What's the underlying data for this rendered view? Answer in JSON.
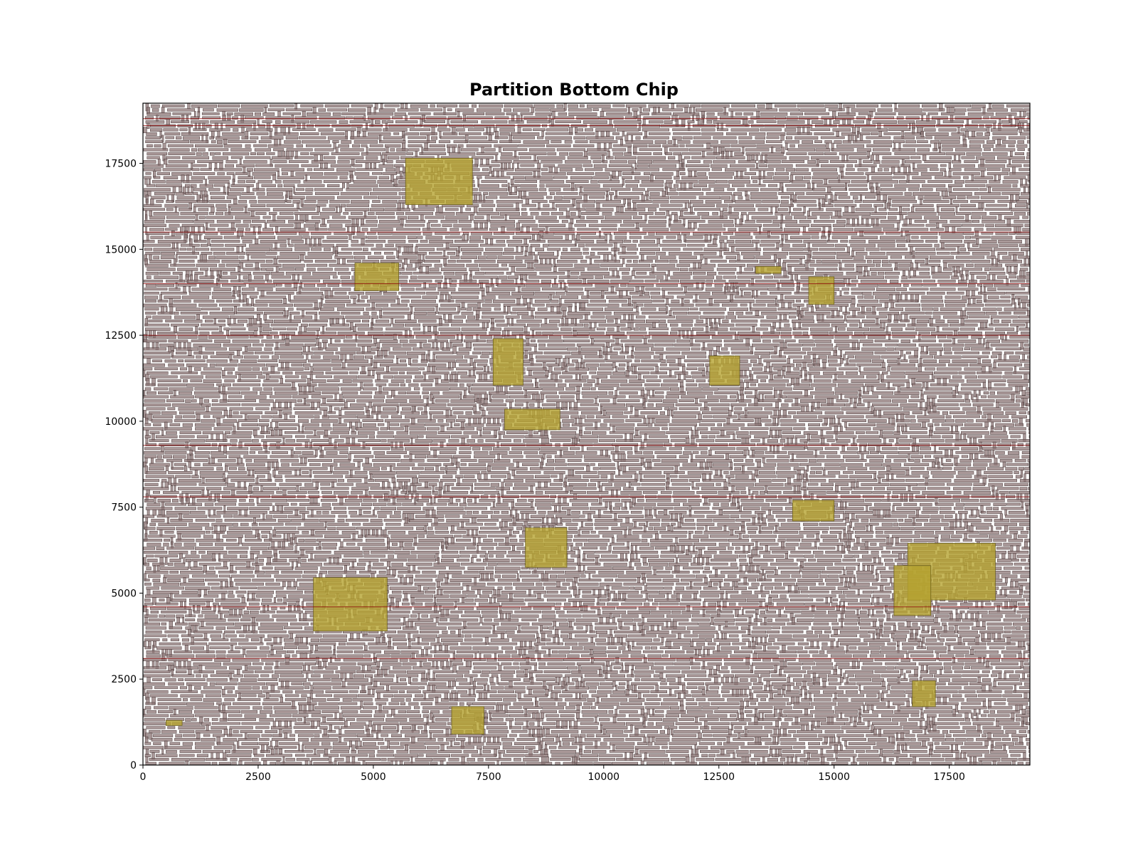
{
  "chart_data": {
    "type": "scatter",
    "title": "Partition Bottom Chip",
    "xlabel": "",
    "ylabel": "",
    "xlim": [
      0,
      19250
    ],
    "ylim": [
      0,
      19250
    ],
    "x_ticks": [
      0,
      2500,
      5000,
      7500,
      10000,
      12500,
      15000,
      17500
    ],
    "y_ticks": [
      0,
      2500,
      5000,
      7500,
      10000,
      12500,
      15000,
      17500
    ],
    "x_tick_labels": [
      "0",
      "2500",
      "5000",
      "7500",
      "10000",
      "12500",
      "15000",
      "17500"
    ],
    "y_tick_labels": [
      "0",
      "2500",
      "5000",
      "7500",
      "10000",
      "12500",
      "15000",
      "17500"
    ],
    "grid": false,
    "legend": "none",
    "series": [
      {
        "kind": "standard_cells",
        "color": "#8c7575",
        "edge_color": "#4a3a3a",
        "note_visual": "dense field of small rectangles covering the full die area"
      },
      {
        "kind": "macros",
        "color": "#b5a230",
        "rects": [
          [
            5700,
            16300,
            7150,
            17650
          ],
          [
            4600,
            13800,
            5550,
            14600
          ],
          [
            13300,
            14300,
            13850,
            14500
          ],
          [
            14450,
            13400,
            15000,
            14200
          ],
          [
            7600,
            11050,
            8250,
            12400
          ],
          [
            12300,
            11050,
            12950,
            11900
          ],
          [
            7850,
            9750,
            9050,
            10350
          ],
          [
            14100,
            7100,
            15000,
            7700
          ],
          [
            8300,
            5750,
            9200,
            6900
          ],
          [
            16600,
            4800,
            18500,
            6450
          ],
          [
            16300,
            4350,
            17100,
            5800
          ],
          [
            3700,
            3900,
            5300,
            5450
          ],
          [
            16700,
            1700,
            17200,
            2450
          ],
          [
            6700,
            900,
            7400,
            1700
          ],
          [
            500,
            1150,
            850,
            1300
          ]
        ]
      },
      {
        "kind": "power_rails",
        "color": "#8b0000",
        "y_values": [
          18600,
          18800,
          15500,
          14000,
          12500,
          9300,
          7800,
          4600,
          3100
        ]
      }
    ]
  }
}
